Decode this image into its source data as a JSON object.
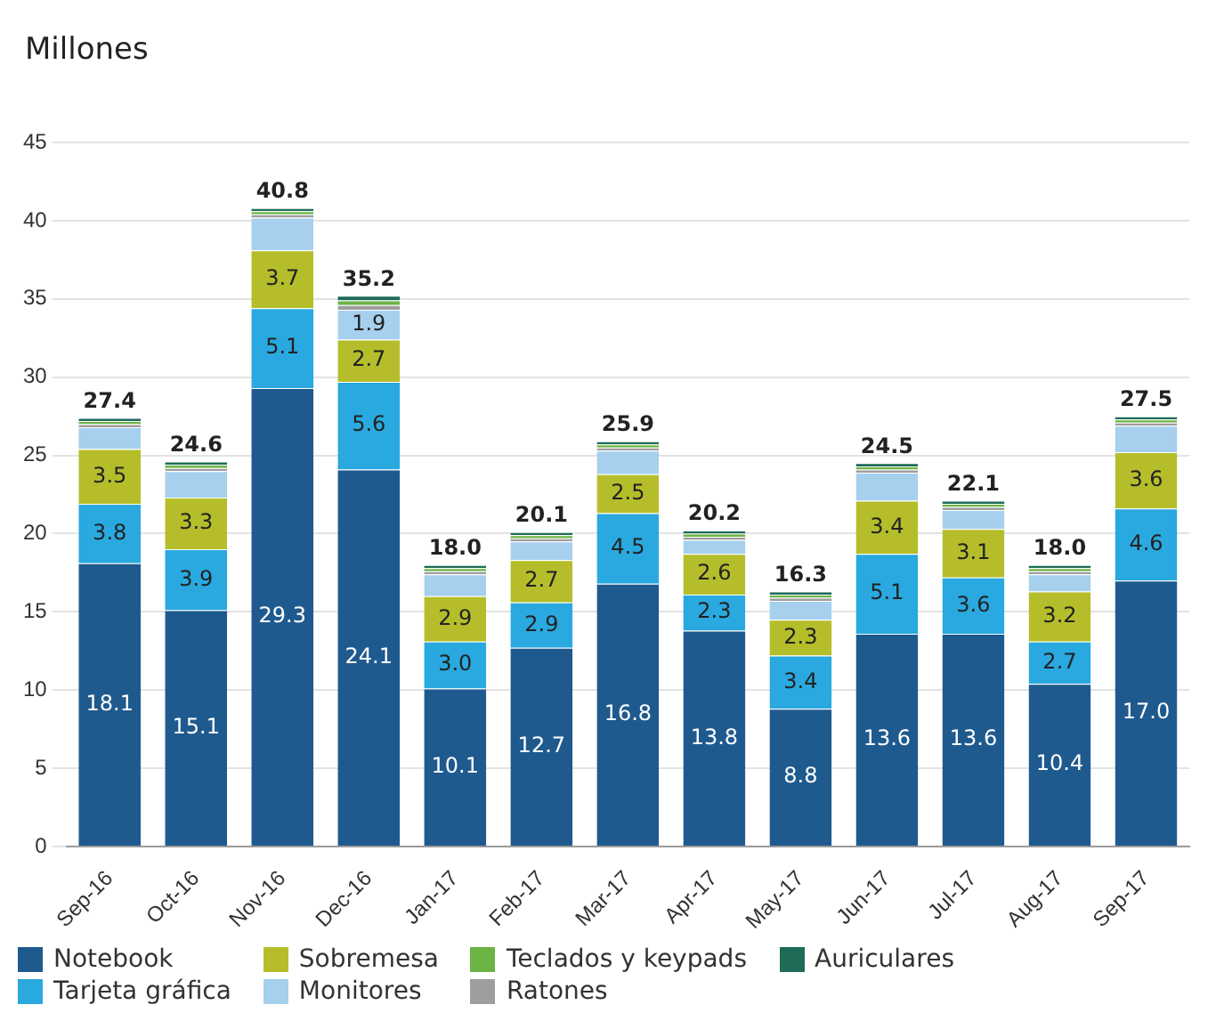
{
  "chart_data": {
    "type": "bar",
    "title": "Millones",
    "stacked": true,
    "grid": "y",
    "legend": "bottom",
    "categories": [
      "Sep-16",
      "Oct-16",
      "Nov-16",
      "Dec-16",
      "Jan-17",
      "Feb-17",
      "Mar-17",
      "Apr-17",
      "May-17",
      "Jun-17",
      "Jul-17",
      "Aug-17",
      "Sep-17"
    ],
    "ylim": [
      0,
      45
    ],
    "yticks": [
      0,
      5,
      10,
      15,
      20,
      25,
      30,
      35,
      40,
      45
    ],
    "series": [
      {
        "name": "Notebook",
        "color": "#1f5a8f",
        "values": [
          18.1,
          15.1,
          29.3,
          24.1,
          10.1,
          12.7,
          16.8,
          13.8,
          8.8,
          13.6,
          13.6,
          10.4,
          17.0
        ],
        "value_labels": [
          "18.1",
          "15.1",
          "29.3",
          "24.1",
          "10.1",
          "12.7",
          "16.8",
          "13.8",
          "8.8",
          "13.6",
          "13.6",
          "10.4",
          "17.0"
        ]
      },
      {
        "name": "Tarjeta gráfica",
        "color": "#29a9df",
        "values": [
          3.8,
          3.9,
          5.1,
          5.6,
          3.0,
          2.9,
          4.5,
          2.3,
          3.4,
          5.1,
          3.6,
          2.7,
          4.6
        ],
        "value_labels": [
          "3.8",
          "3.9",
          "5.1",
          "5.6",
          "3.0",
          "2.9",
          "4.5",
          "2.3",
          "3.4",
          "5.1",
          "3.6",
          "2.7",
          "4.6"
        ]
      },
      {
        "name": "Sobremesa",
        "color": "#b5be2a",
        "values": [
          3.5,
          3.3,
          3.7,
          2.7,
          2.9,
          2.7,
          2.5,
          2.6,
          2.3,
          3.4,
          3.1,
          3.2,
          3.6
        ],
        "value_labels": [
          "3.5",
          "3.3",
          "3.7",
          "2.7",
          "2.9",
          "2.7",
          "2.5",
          "2.6",
          "2.3",
          "3.4",
          "3.1",
          "3.2",
          "3.6"
        ]
      },
      {
        "name": "Monitores",
        "color": "#a6d0ee",
        "values": [
          1.4,
          1.7,
          2.1,
          1.9,
          1.4,
          1.2,
          1.5,
          0.9,
          1.2,
          1.8,
          1.2,
          1.1,
          1.7
        ],
        "value_labels": [
          null,
          null,
          null,
          "1.9",
          null,
          null,
          null,
          null,
          null,
          null,
          null,
          null,
          null
        ]
      },
      {
        "name": "Ratones",
        "color": "#9e9e9e",
        "values": [
          0.2,
          0.2,
          0.2,
          0.3,
          0.2,
          0.2,
          0.2,
          0.2,
          0.2,
          0.2,
          0.2,
          0.2,
          0.2
        ]
      },
      {
        "name": "Teclados y keypads",
        "color": "#6ab344",
        "values": [
          0.2,
          0.2,
          0.2,
          0.3,
          0.2,
          0.2,
          0.2,
          0.2,
          0.2,
          0.2,
          0.2,
          0.2,
          0.2
        ]
      },
      {
        "name": "Auriculares",
        "color": "#1e6b58",
        "values": [
          0.2,
          0.2,
          0.2,
          0.3,
          0.2,
          0.2,
          0.2,
          0.2,
          0.2,
          0.2,
          0.2,
          0.2,
          0.2
        ]
      }
    ],
    "totals": [
      "27.4",
      "24.6",
      "40.8",
      "35.2",
      "18.0",
      "20.1",
      "25.9",
      "20.2",
      "16.3",
      "24.5",
      "22.1",
      "18.0",
      "27.5"
    ]
  }
}
